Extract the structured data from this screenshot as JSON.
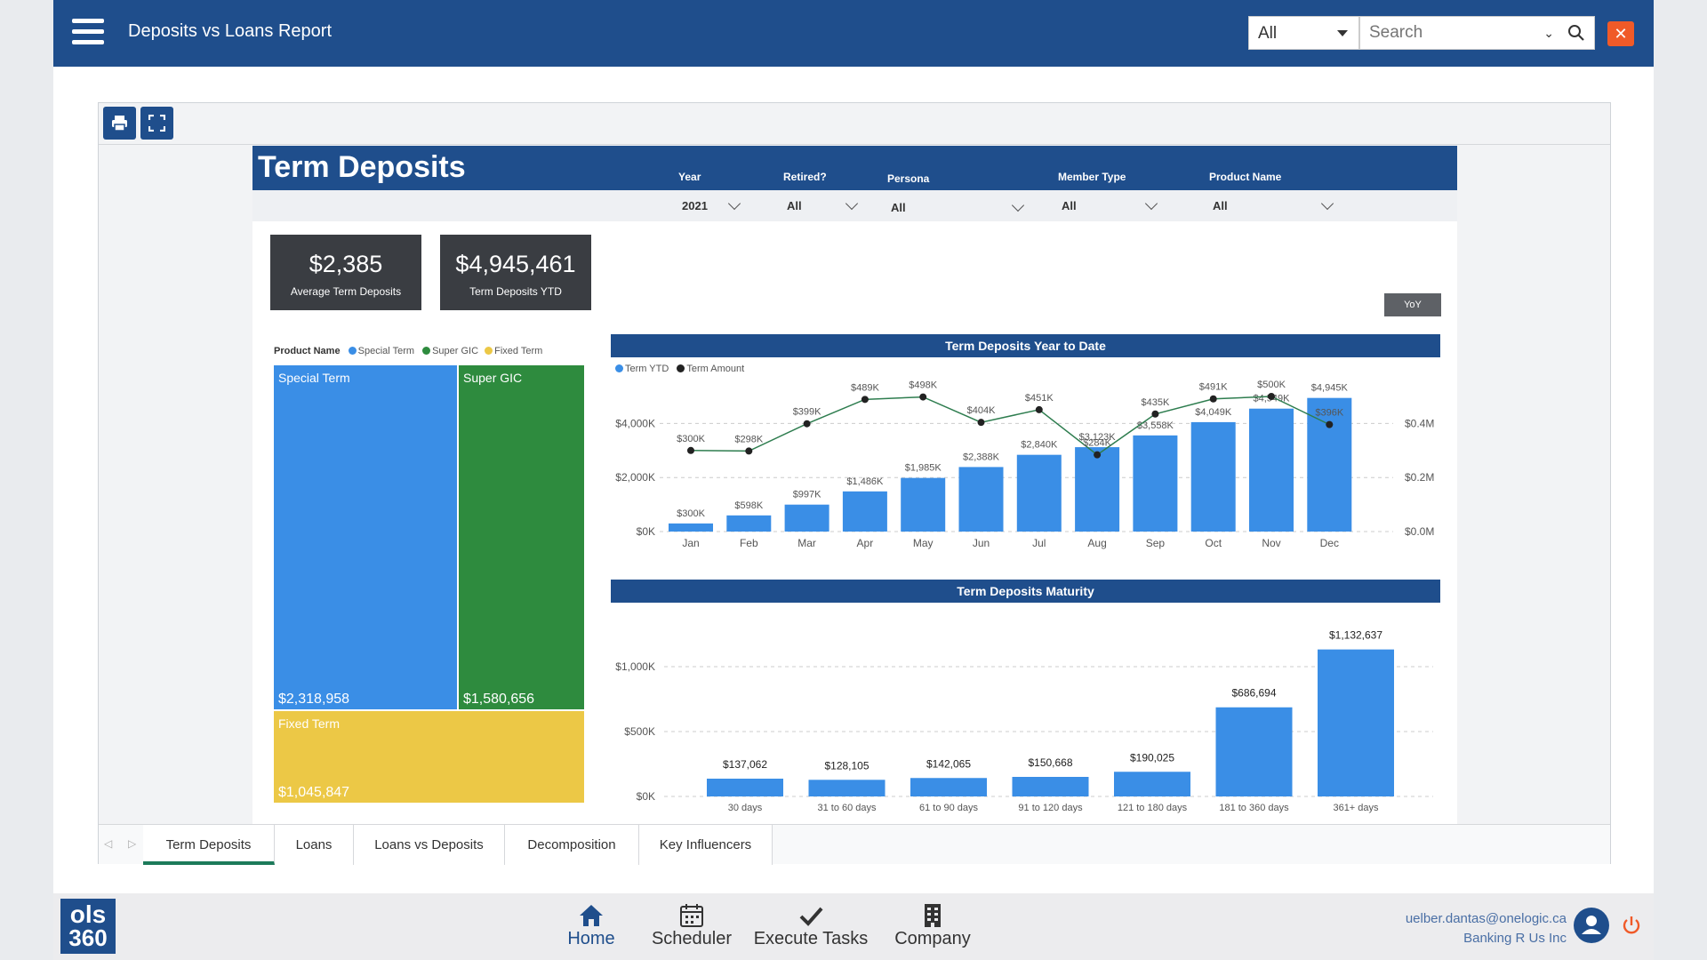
{
  "app": {
    "title": "Deposits vs Loans Report"
  },
  "search": {
    "scope": "All",
    "placeholder": "Search"
  },
  "report": {
    "title": "Term Deposits",
    "slicers": [
      {
        "label": "Year",
        "value": "2021"
      },
      {
        "label": "Retired?",
        "value": "All"
      },
      {
        "label": "Persona",
        "value": "All"
      },
      {
        "label": "Member Type",
        "value": "All"
      },
      {
        "label": "Product Name",
        "value": "All"
      }
    ],
    "kpis": [
      {
        "value": "$2,385",
        "label": "Average Term Deposits"
      },
      {
        "value": "$4,945,461",
        "label": "Term Deposits YTD"
      }
    ],
    "yoy_label": "YoY",
    "treemap": {
      "legend_title": "Product Name",
      "items": [
        {
          "name": "Special Term",
          "value": "$2,318,958",
          "color": "#3a8ee6"
        },
        {
          "name": "Super GIC",
          "value": "$1,580,656",
          "color": "#2e8b3e"
        },
        {
          "name": "Fixed Term",
          "value": "$1,045,847",
          "color": "#ecc846"
        }
      ]
    },
    "ytd_chart": {
      "title": "Term Deposits Year to Date",
      "legend": [
        {
          "name": "Term YTD",
          "color": "#3a8ee6"
        },
        {
          "name": "Term Amount",
          "color": "#222222"
        }
      ]
    },
    "maturity_chart": {
      "title": "Term Deposits Maturity"
    },
    "tabs": [
      "Term Deposits",
      "Loans",
      "Loans vs Deposits",
      "Decomposition",
      "Key Influencers"
    ],
    "active_tab": "Term Deposits"
  },
  "chart_data": [
    {
      "type": "bar",
      "title": "Term Deposits Year to Date",
      "categories": [
        "Jan",
        "Feb",
        "Mar",
        "Apr",
        "May",
        "Jun",
        "Jul",
        "Aug",
        "Sep",
        "Oct",
        "Nov",
        "Dec"
      ],
      "series": [
        {
          "name": "Term YTD",
          "type": "bar",
          "axis": "left",
          "values": [
            300,
            598,
            997,
            1486,
            1985,
            2388,
            2840,
            3123,
            3558,
            4049,
            4549,
            4945
          ],
          "labels": [
            "$300K",
            "$598K",
            "$997K",
            "$1,486K",
            "$1,985K",
            "$2,388K",
            "$2,840K",
            "$3,123K",
            "$3,558K",
            "$4,049K",
            "$4,549K",
            "$4,945K"
          ]
        },
        {
          "name": "Term Amount",
          "type": "line",
          "axis": "right",
          "values": [
            300,
            298,
            399,
            489,
            498,
            404,
            451,
            284,
            435,
            491,
            500,
            396
          ],
          "labels": [
            "$300K",
            "$298K",
            "$399K",
            "$489K",
            "$498K",
            "$404K",
            "$451K",
            "$284K",
            "$435K",
            "$491K",
            "$500K",
            "$396K"
          ]
        }
      ],
      "y_ticks_left": [
        "$0K",
        "$2,000K",
        "$4,000K"
      ],
      "ylim_left": [
        0,
        5000
      ],
      "y_ticks_right": [
        "$0.0M",
        "$0.2M",
        "$0.4M"
      ],
      "ylim_right": [
        0,
        0.5
      ],
      "legend": "top-left",
      "grid": true
    },
    {
      "type": "bar",
      "title": "Term Deposits Maturity",
      "categories": [
        "30 days",
        "31 to 60 days",
        "61 to 90 days",
        "91 to 120 days",
        "121 to 180 days",
        "181 to 360 days",
        "361+ days"
      ],
      "values": [
        137062,
        128105,
        142065,
        150668,
        190025,
        686694,
        1132637
      ],
      "labels": [
        "$137,062",
        "$128,105",
        "$142,065",
        "$150,668",
        "$190,025",
        "$686,694",
        "$1,132,637"
      ],
      "y_ticks": [
        "$0K",
        "$500K",
        "$1,000K"
      ],
      "ylim": [
        0,
        1200000
      ],
      "grid": true
    }
  ],
  "bottom_nav": [
    {
      "label": "Home",
      "icon": "home-icon"
    },
    {
      "label": "Scheduler",
      "icon": "calendar-icon"
    },
    {
      "label": "Execute Tasks",
      "icon": "checkmark-icon"
    },
    {
      "label": "Company",
      "icon": "building-icon"
    }
  ],
  "logo": {
    "line1": "ols",
    "line2": "360"
  },
  "user": {
    "email": "uelber.dantas@onelogic.ca",
    "company": "Banking R Us Inc"
  },
  "colors": {
    "brand": "#1f4e8c",
    "bar": "#3a8ee6",
    "accent_close": "#f05a28",
    "tab_active": "#1c7a5a"
  }
}
